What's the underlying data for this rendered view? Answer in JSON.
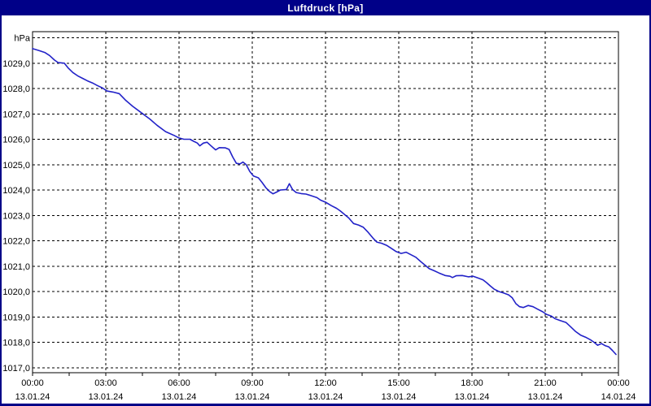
{
  "window": {
    "title": "Luftdruck [hPa]",
    "colors": {
      "title_bar": "#000088",
      "border": "#000088",
      "background": "#ffffff",
      "plot_background": "#ffffff",
      "grid": "#000000",
      "axis_text": "#000000",
      "series_line": "#2222c8"
    }
  },
  "chart_data": {
    "type": "line",
    "title": "Luftdruck [hPa]",
    "grid": "dashed",
    "legend": "none",
    "x_axis": {
      "kind": "datetime",
      "hours_range": [
        0,
        24
      ],
      "major_step_hours": 3,
      "minor_tick_step_hours": 1.5,
      "ticks": [
        {
          "hour": 0,
          "time": "00:00",
          "date": "13.01.24"
        },
        {
          "hour": 3,
          "time": "03:00",
          "date": "13.01.24"
        },
        {
          "hour": 6,
          "time": "06:00",
          "date": "13.01.24"
        },
        {
          "hour": 9,
          "time": "09:00",
          "date": "13.01.24"
        },
        {
          "hour": 12,
          "time": "12:00",
          "date": "13.01.24"
        },
        {
          "hour": 15,
          "time": "15:00",
          "date": "13.01.24"
        },
        {
          "hour": 18,
          "time": "18:00",
          "date": "13.01.24"
        },
        {
          "hour": 21,
          "time": "21:00",
          "date": "13.01.24"
        },
        {
          "hour": 24,
          "time": "00:00",
          "date": "14.01.24"
        }
      ]
    },
    "y_axis": {
      "unit": "hPa",
      "unit_line_value": 1030,
      "ylim": [
        1016.8,
        1030.24
      ],
      "tick_labels": [
        {
          "value": 1029,
          "label": "1029,0"
        },
        {
          "value": 1028,
          "label": "1028,0"
        },
        {
          "value": 1027,
          "label": "1027,0"
        },
        {
          "value": 1026,
          "label": "1026,0"
        },
        {
          "value": 1025,
          "label": "1025,0"
        },
        {
          "value": 1024,
          "label": "1024,0"
        },
        {
          "value": 1023,
          "label": "1023,0"
        },
        {
          "value": 1022,
          "label": "1022,0"
        },
        {
          "value": 1021,
          "label": "1021,0"
        },
        {
          "value": 1020,
          "label": "1020,0"
        },
        {
          "value": 1019,
          "label": "1019,0"
        },
        {
          "value": 1018,
          "label": "1018,0"
        },
        {
          "value": 1017,
          "label": "1017,0"
        }
      ]
    },
    "series": [
      {
        "name": "Luftdruck",
        "unit": "hPa",
        "color": "#2222c8",
        "points_hour_hpa": [
          [
            0,
            1029.57
          ],
          [
            0.25,
            1029.5
          ],
          [
            0.5,
            1029.42
          ],
          [
            0.7,
            1029.3
          ],
          [
            0.9,
            1029.12
          ],
          [
            1.05,
            1029.02
          ],
          [
            1.3,
            1029.0
          ],
          [
            1.45,
            1028.82
          ],
          [
            1.65,
            1028.63
          ],
          [
            1.85,
            1028.5
          ],
          [
            2.05,
            1028.4
          ],
          [
            2.25,
            1028.3
          ],
          [
            2.45,
            1028.22
          ],
          [
            2.65,
            1028.12
          ],
          [
            2.85,
            1028.03
          ],
          [
            3.05,
            1027.9
          ],
          [
            3.3,
            1027.86
          ],
          [
            3.55,
            1027.8
          ],
          [
            3.8,
            1027.55
          ],
          [
            4.1,
            1027.3
          ],
          [
            4.45,
            1027.05
          ],
          [
            4.8,
            1026.8
          ],
          [
            5.1,
            1026.55
          ],
          [
            5.45,
            1026.3
          ],
          [
            5.8,
            1026.15
          ],
          [
            6.0,
            1026.05
          ],
          [
            6.2,
            1026.0
          ],
          [
            6.45,
            1026.0
          ],
          [
            6.6,
            1025.92
          ],
          [
            6.75,
            1025.85
          ],
          [
            6.85,
            1025.74
          ],
          [
            7.0,
            1025.85
          ],
          [
            7.15,
            1025.88
          ],
          [
            7.3,
            1025.75
          ],
          [
            7.5,
            1025.58
          ],
          [
            7.65,
            1025.67
          ],
          [
            7.9,
            1025.66
          ],
          [
            8.05,
            1025.6
          ],
          [
            8.2,
            1025.3
          ],
          [
            8.35,
            1025.05
          ],
          [
            8.5,
            1025.03
          ],
          [
            8.62,
            1025.1
          ],
          [
            8.75,
            1025.0
          ],
          [
            8.9,
            1024.73
          ],
          [
            9.05,
            1024.55
          ],
          [
            9.25,
            1024.48
          ],
          [
            9.4,
            1024.3
          ],
          [
            9.55,
            1024.1
          ],
          [
            9.7,
            1023.95
          ],
          [
            9.85,
            1023.85
          ],
          [
            10.0,
            1023.92
          ],
          [
            10.15,
            1024.0
          ],
          [
            10.4,
            1024.02
          ],
          [
            10.52,
            1024.25
          ],
          [
            10.65,
            1024.02
          ],
          [
            10.8,
            1023.9
          ],
          [
            11.0,
            1023.86
          ],
          [
            11.2,
            1023.84
          ],
          [
            11.4,
            1023.78
          ],
          [
            11.65,
            1023.7
          ],
          [
            11.8,
            1023.6
          ],
          [
            12.0,
            1023.52
          ],
          [
            12.25,
            1023.38
          ],
          [
            12.45,
            1023.28
          ],
          [
            12.6,
            1023.18
          ],
          [
            12.8,
            1023.02
          ],
          [
            12.95,
            1022.9
          ],
          [
            13.15,
            1022.68
          ],
          [
            13.35,
            1022.62
          ],
          [
            13.55,
            1022.53
          ],
          [
            13.75,
            1022.33
          ],
          [
            13.95,
            1022.1
          ],
          [
            14.1,
            1021.95
          ],
          [
            14.3,
            1021.9
          ],
          [
            14.5,
            1021.82
          ],
          [
            14.7,
            1021.7
          ],
          [
            14.9,
            1021.57
          ],
          [
            15.1,
            1021.5
          ],
          [
            15.3,
            1021.55
          ],
          [
            15.5,
            1021.45
          ],
          [
            15.7,
            1021.35
          ],
          [
            15.9,
            1021.18
          ],
          [
            16.1,
            1021.02
          ],
          [
            16.25,
            1020.9
          ],
          [
            16.45,
            1020.82
          ],
          [
            16.65,
            1020.73
          ],
          [
            16.9,
            1020.63
          ],
          [
            17.1,
            1020.6
          ],
          [
            17.2,
            1020.55
          ],
          [
            17.35,
            1020.62
          ],
          [
            17.6,
            1020.63
          ],
          [
            17.85,
            1020.58
          ],
          [
            18.05,
            1020.6
          ],
          [
            18.25,
            1020.53
          ],
          [
            18.45,
            1020.46
          ],
          [
            18.6,
            1020.35
          ],
          [
            18.75,
            1020.22
          ],
          [
            18.9,
            1020.1
          ],
          [
            19.1,
            1020.0
          ],
          [
            19.3,
            1019.94
          ],
          [
            19.5,
            1019.87
          ],
          [
            19.65,
            1019.75
          ],
          [
            19.8,
            1019.52
          ],
          [
            19.95,
            1019.4
          ],
          [
            20.1,
            1019.37
          ],
          [
            20.3,
            1019.45
          ],
          [
            20.5,
            1019.4
          ],
          [
            20.7,
            1019.3
          ],
          [
            20.9,
            1019.2
          ],
          [
            21.05,
            1019.1
          ],
          [
            21.25,
            1019.03
          ],
          [
            21.4,
            1018.93
          ],
          [
            21.6,
            1018.86
          ],
          [
            21.85,
            1018.78
          ],
          [
            22.05,
            1018.6
          ],
          [
            22.25,
            1018.42
          ],
          [
            22.45,
            1018.28
          ],
          [
            22.65,
            1018.2
          ],
          [
            22.85,
            1018.1
          ],
          [
            23.0,
            1018.0
          ],
          [
            23.15,
            1017.88
          ],
          [
            23.3,
            1017.95
          ],
          [
            23.45,
            1017.87
          ],
          [
            23.6,
            1017.82
          ],
          [
            23.75,
            1017.68
          ],
          [
            23.9,
            1017.52
          ]
        ]
      }
    ]
  }
}
